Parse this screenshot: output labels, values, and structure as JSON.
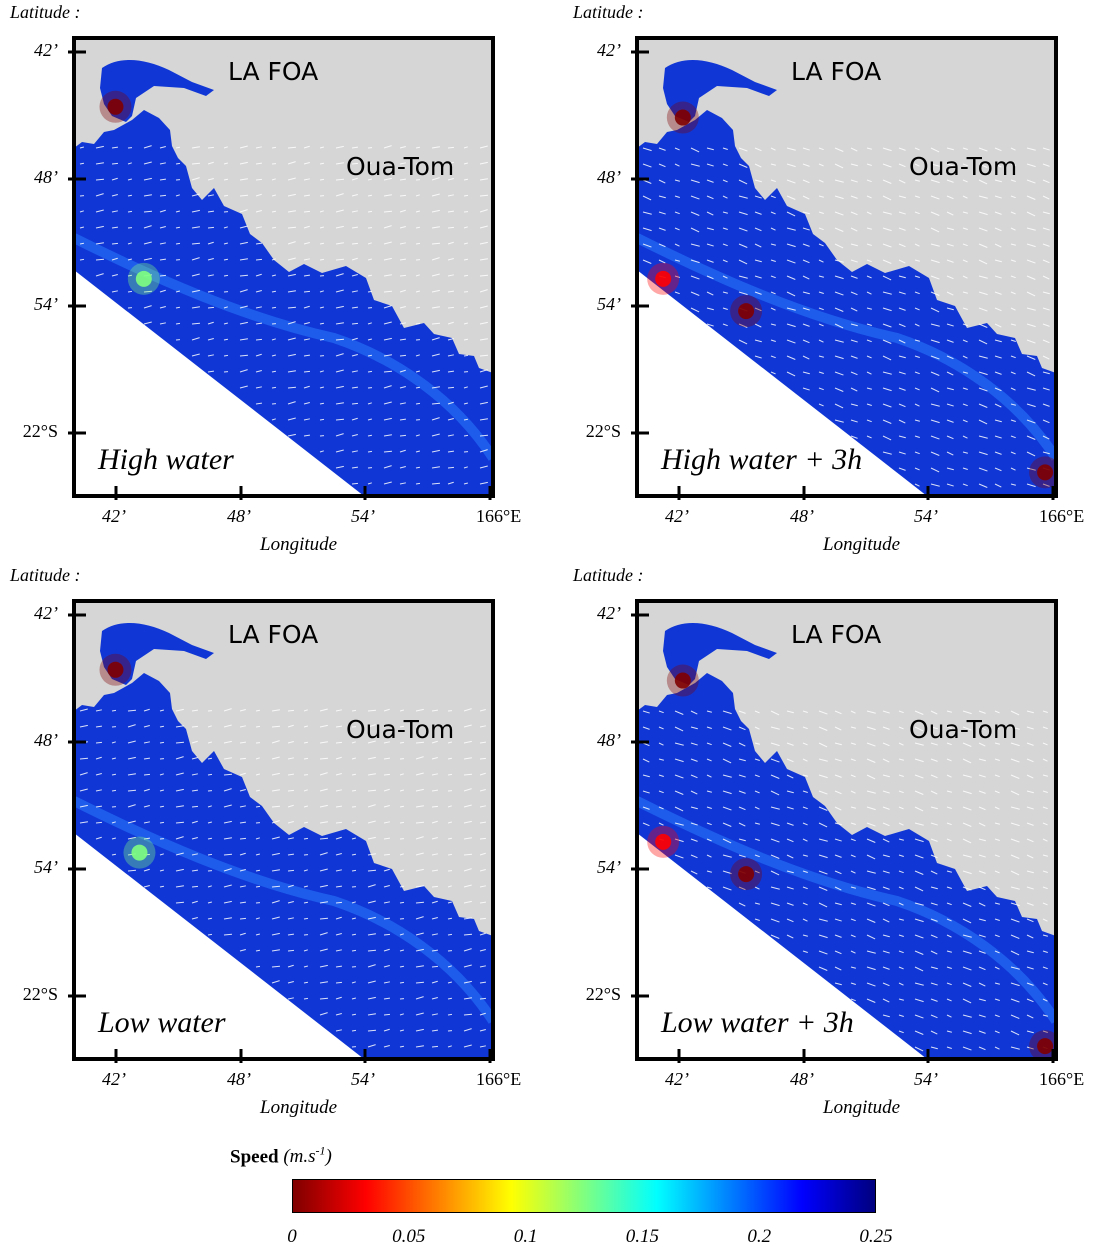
{
  "panels": [
    {
      "id": "high",
      "phase_label": "High water",
      "lat_title": "Latitude :",
      "lon_title": "Longitude",
      "place_labels": [
        "LA FOA",
        "Oua-Tom"
      ],
      "lat_ticks": [
        "42’",
        "48’",
        "54’",
        "22°S"
      ],
      "lon_ticks": [
        "42’",
        "48’",
        "54’",
        "166°E"
      ],
      "hotspots": [
        {
          "lon": 42.7,
          "lat": 44.5,
          "speed": 0.0
        },
        {
          "lon": 44.0,
          "lat": 52.5,
          "speed": 0.13
        }
      ]
    },
    {
      "id": "high3h",
      "phase_label": "High water + 3h",
      "lat_title": "Latitude :",
      "lon_title": "Longitude",
      "place_labels": [
        "LA FOA",
        "Oua-Tom"
      ],
      "lat_ticks": [
        "42’",
        "48’",
        "54’",
        "22°S"
      ],
      "lon_ticks": [
        "42’",
        "48’",
        "54’",
        "166°E"
      ],
      "hotspots": [
        {
          "lon": 42.9,
          "lat": 45.0,
          "speed": 0.0
        },
        {
          "lon": 45.8,
          "lat": 54.0,
          "speed": 0.0
        },
        {
          "lon": 42.0,
          "lat": 52.5,
          "speed": 0.03
        },
        {
          "lon": 59.5,
          "lat": 61.5,
          "speed": 0.01
        }
      ]
    },
    {
      "id": "low",
      "phase_label": "Low water",
      "lat_title": "Latitude :",
      "lon_title": "Longitude",
      "place_labels": [
        "LA FOA",
        "Oua-Tom"
      ],
      "lat_ticks": [
        "42’",
        "48’",
        "54’",
        "22°S"
      ],
      "lon_ticks": [
        "42’",
        "48’",
        "54’",
        "166°E"
      ],
      "hotspots": [
        {
          "lon": 42.7,
          "lat": 44.5,
          "speed": 0.0
        },
        {
          "lon": 43.8,
          "lat": 53.0,
          "speed": 0.12
        }
      ]
    },
    {
      "id": "low3h",
      "phase_label": "Low water + 3h",
      "lat_title": "Latitude :",
      "lon_title": "Longitude",
      "place_labels": [
        "LA FOA",
        "Oua-Tom"
      ],
      "lat_ticks": [
        "42’",
        "48’",
        "54’",
        "22°S"
      ],
      "lon_ticks": [
        "42’",
        "48’",
        "54’",
        "166°E"
      ],
      "hotspots": [
        {
          "lon": 42.9,
          "lat": 45.0,
          "speed": 0.0
        },
        {
          "lon": 45.8,
          "lat": 54.0,
          "speed": 0.0
        },
        {
          "lon": 42.0,
          "lat": 52.5,
          "speed": 0.02
        },
        {
          "lon": 59.5,
          "lat": 62.0,
          "speed": 0.0
        }
      ]
    }
  ],
  "colorbar": {
    "title_bold": "Speed",
    "title_unit_base": "(m.s",
    "title_unit_exp": "-1",
    "title_unit_close": ")",
    "ticks": [
      "0",
      "0.05",
      "0.1",
      "0.15",
      "0.2",
      "0.25"
    ],
    "range": [
      0,
      0.25
    ],
    "stops": [
      "#7f0000",
      "#ff0000",
      "#ff8000",
      "#ffff00",
      "#80ff80",
      "#00ffff",
      "#0080ff",
      "#0000ff",
      "#00007f"
    ]
  },
  "colors": {
    "land": "#d6d6d6",
    "water_deep": "#0a28b8",
    "water": "#1037d6",
    "arrow": "#ffffff",
    "frame": "#000000"
  }
}
